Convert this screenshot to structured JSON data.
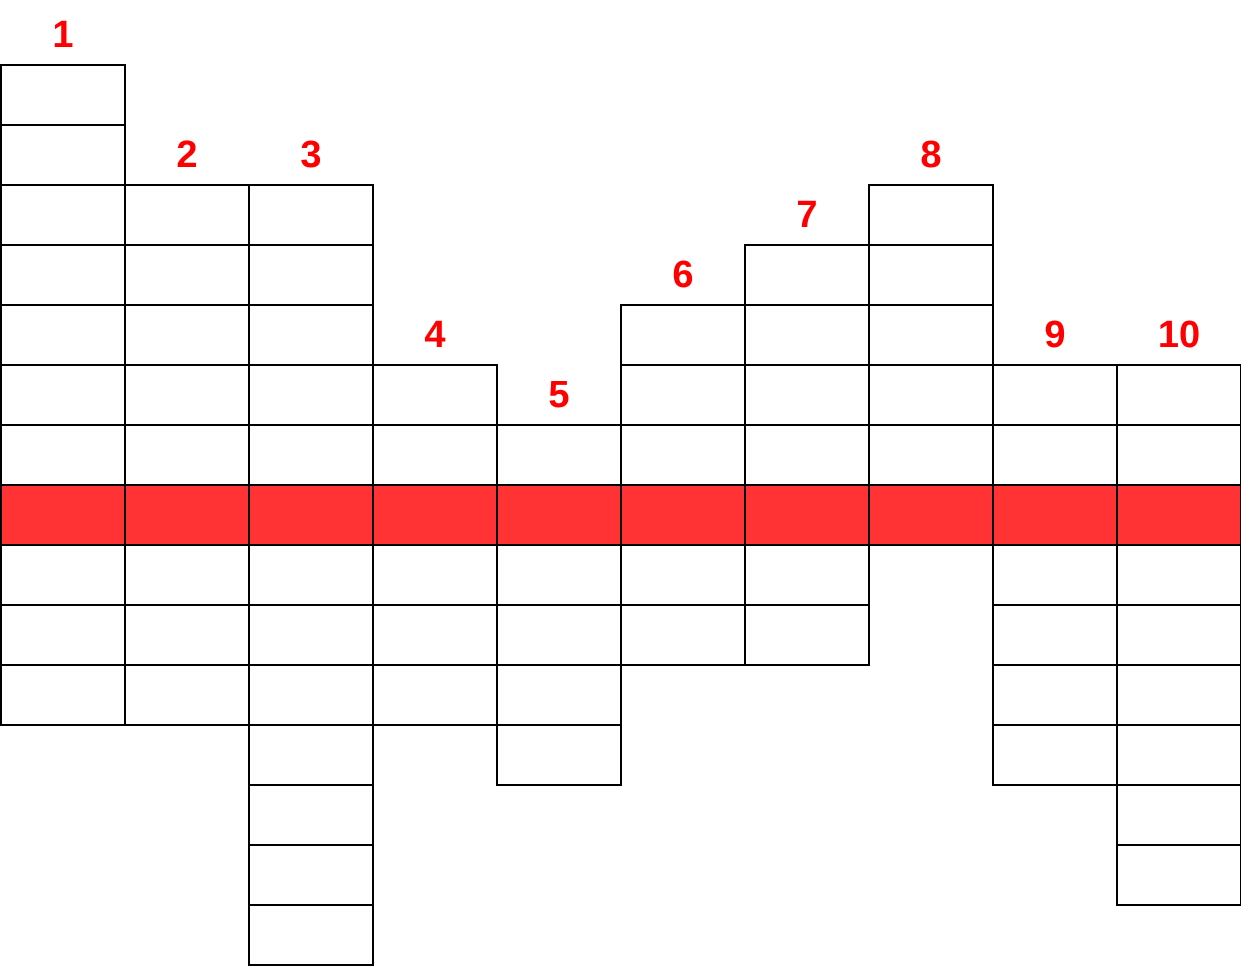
{
  "columns": [
    {
      "label": "1"
    },
    {
      "label": "2"
    },
    {
      "label": "3"
    },
    {
      "label": "4"
    },
    {
      "label": "5"
    },
    {
      "label": "6"
    },
    {
      "label": "7"
    },
    {
      "label": "8"
    },
    {
      "label": "9"
    },
    {
      "label": "10"
    }
  ]
}
